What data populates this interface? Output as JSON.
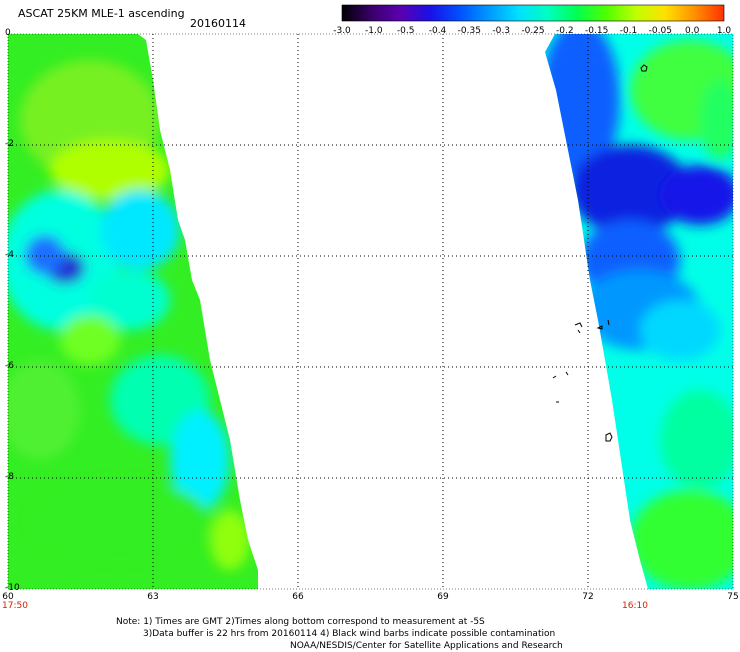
{
  "header": {
    "title": "ASCAT 25KM MLE-1 ascending",
    "date": "20160114"
  },
  "colorbar": {
    "ticks": [
      "-3.0",
      "-1.0",
      "-0.5",
      "-0.4",
      "-0.35",
      "-0.3",
      "-0.25",
      "-0.2",
      "-0.15",
      "-0.1",
      "-0.05",
      "0.0",
      "1.0"
    ],
    "colors": [
      "#000000",
      "#3a006a",
      "#5a00b0",
      "#1a10e6",
      "#0050ff",
      "#0098ff",
      "#00e0ff",
      "#00ffc0",
      "#00ff50",
      "#50ff00",
      "#c0ff00",
      "#ffe000",
      "#ff9000",
      "#ff3000"
    ]
  },
  "map": {
    "lon_range": [
      60,
      75
    ],
    "lat_range": [
      0,
      -10
    ],
    "x_ticks": [
      "60",
      "63",
      "66",
      "69",
      "72",
      "75"
    ],
    "y_ticks": [
      "0",
      "-2",
      "-4",
      "-6",
      "-8",
      "-10"
    ],
    "swath_times": {
      "left": "17:50",
      "right": "16:10"
    }
  },
  "notes": {
    "line1": "Note: 1) Times are GMT 2)Times along bottom correspond to measurement at -5S",
    "line2": "3)Data buffer is 22 hrs from 20160114 4) Black wind barbs indicate possible contamination",
    "line3": "NOAA/NESDIS/Center for Satellite Applications and Research"
  }
}
